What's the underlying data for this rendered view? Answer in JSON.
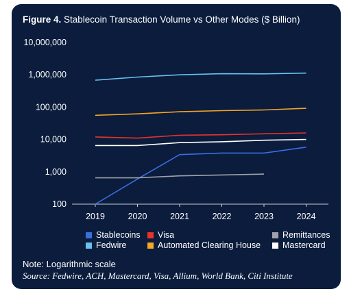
{
  "chart_data": {
    "type": "line",
    "title_label": "Figure 4.",
    "title": "Stablecoin Transaction Volume vs Other Modes ($ Billion)",
    "x": [
      "2019",
      "2020",
      "2021",
      "2022",
      "2023",
      "2024"
    ],
    "y_scale": "log",
    "ylim": [
      100,
      10000000
    ],
    "y_ticks": [
      "10,000,000",
      "1,000,000",
      "100,000",
      "10,000",
      "1,000",
      "100"
    ],
    "grid": false,
    "legend_position": "bottom",
    "series": [
      {
        "name": "Stablecoins",
        "color": "#3a6fe0",
        "values": [
          100,
          600,
          3400,
          3800,
          3800,
          5800
        ]
      },
      {
        "name": "Visa",
        "color": "#e8332a",
        "values": [
          12000,
          11000,
          13500,
          14000,
          15000,
          16000
        ]
      },
      {
        "name": "Remittances",
        "color": "#9ea3ab",
        "values": [
          650,
          650,
          750,
          800,
          850,
          null
        ]
      },
      {
        "name": "Fedwire",
        "color": "#6cc0f0",
        "values": [
          680000,
          850000,
          1000000,
          1080000,
          1070000,
          1130000
        ]
      },
      {
        "name": "Automated Clearing House",
        "color": "#f5a623",
        "values": [
          56000,
          62000,
          72000,
          78000,
          82000,
          92000
        ]
      },
      {
        "name": "Mastercard",
        "color": "#ffffff",
        "values": [
          6500,
          6500,
          8000,
          8500,
          9500,
          10000
        ]
      }
    ]
  },
  "note": "Note: Logarithmic scale",
  "source": "Source: Fedwire, ACH, Mastercard, Visa, Allium, World Bank, Citi Institute"
}
